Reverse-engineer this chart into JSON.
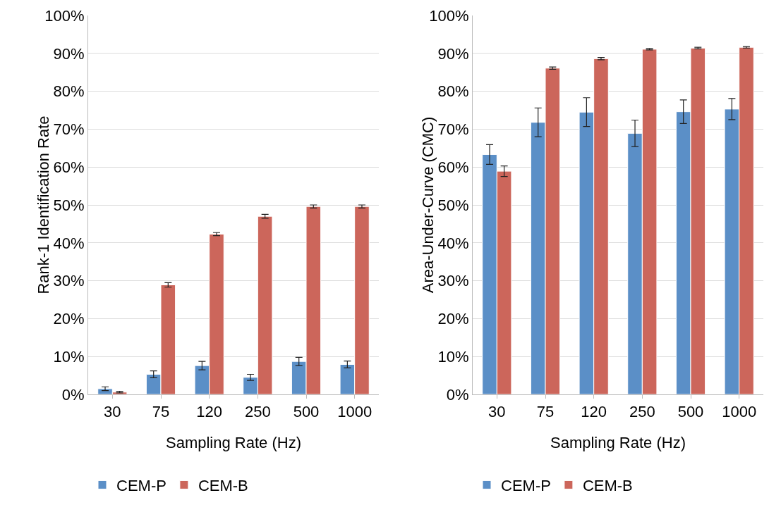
{
  "chart_data": [
    {
      "type": "bar",
      "xlabel": "Sampling Rate (Hz)",
      "ylabel": "Rank-1 Identification Rate",
      "categories": [
        "30",
        "75",
        "120",
        "250",
        "500",
        "1000"
      ],
      "series": [
        {
          "name": "CEM-P",
          "color": "#5b8fc7",
          "values": [
            1.5,
            5.3,
            7.6,
            4.5,
            8.7,
            7.9
          ],
          "errors": [
            0.5,
            0.9,
            1.1,
            0.8,
            1.1,
            0.9
          ]
        },
        {
          "name": "CEM-B",
          "color": "#cc665b",
          "values": [
            0.6,
            28.9,
            42.3,
            47,
            49.6,
            49.6
          ],
          "errors": [
            0.2,
            0.6,
            0.4,
            0.5,
            0.4,
            0.4
          ]
        }
      ],
      "ylim": [
        0,
        100
      ],
      "yticks": [
        {
          "value": 0,
          "label": "0%"
        },
        {
          "value": 10,
          "label": "10%"
        },
        {
          "value": 20,
          "label": "20%"
        },
        {
          "value": 30,
          "label": "30%"
        },
        {
          "value": 40,
          "label": "40%"
        },
        {
          "value": 50,
          "label": "50%"
        },
        {
          "value": 60,
          "label": "60%"
        },
        {
          "value": 70,
          "label": "70%"
        },
        {
          "value": 80,
          "label": "80%"
        },
        {
          "value": 90,
          "label": "90%"
        },
        {
          "value": 100,
          "label": "100%"
        }
      ],
      "grid": "y",
      "legend": "bottom"
    },
    {
      "type": "bar",
      "xlabel": "Sampling Rate (Hz)",
      "ylabel": "Area-Under-Curve (CMC)",
      "categories": [
        "30",
        "75",
        "120",
        "250",
        "500",
        "1000"
      ],
      "series": [
        {
          "name": "CEM-P",
          "color": "#5b8fc7",
          "values": [
            63.3,
            71.8,
            74.5,
            68.9,
            74.6,
            75.3
          ],
          "errors": [
            2.6,
            3.8,
            3.8,
            3.5,
            3.1,
            2.8
          ]
        },
        {
          "name": "CEM-B",
          "color": "#cc665b",
          "values": [
            58.9,
            86.1,
            88.6,
            91.1,
            91.4,
            91.6
          ],
          "errors": [
            1.4,
            0.3,
            0.3,
            0.2,
            0.2,
            0.2
          ]
        }
      ],
      "ylim": [
        0,
        100
      ],
      "yticks": [
        {
          "value": 0,
          "label": "0%"
        },
        {
          "value": 10,
          "label": "10%"
        },
        {
          "value": 20,
          "label": "20%"
        },
        {
          "value": 30,
          "label": "30%"
        },
        {
          "value": 40,
          "label": "40%"
        },
        {
          "value": 50,
          "label": "50%"
        },
        {
          "value": 60,
          "label": "60%"
        },
        {
          "value": 70,
          "label": "70%"
        },
        {
          "value": 80,
          "label": "80%"
        },
        {
          "value": 90,
          "label": "90%"
        },
        {
          "value": 100,
          "label": "100%"
        }
      ],
      "grid": "y",
      "legend": "bottom"
    }
  ]
}
